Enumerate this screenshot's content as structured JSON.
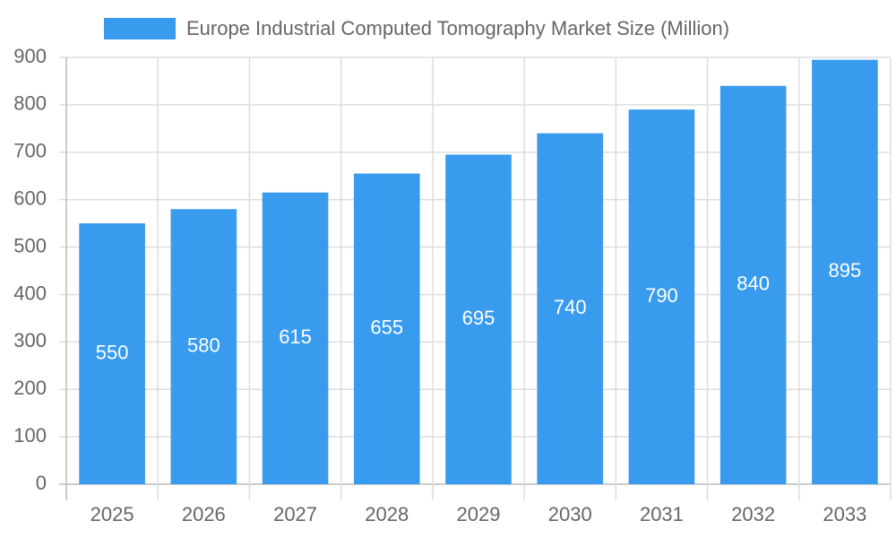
{
  "chart_data": {
    "type": "bar",
    "categories": [
      "2025",
      "2026",
      "2027",
      "2028",
      "2029",
      "2030",
      "2031",
      "2032",
      "2033"
    ],
    "series": [
      {
        "name": "Europe Industrial Computed Tomography Market Size (Million)",
        "color": "#389bee",
        "values": [
          550,
          580,
          615,
          655,
          695,
          740,
          790,
          840,
          895
        ]
      }
    ],
    "ylim": [
      0,
      900
    ],
    "yticks": [
      0,
      100,
      200,
      300,
      400,
      500,
      600,
      700,
      800,
      900
    ],
    "grid": true,
    "legend": "top"
  }
}
